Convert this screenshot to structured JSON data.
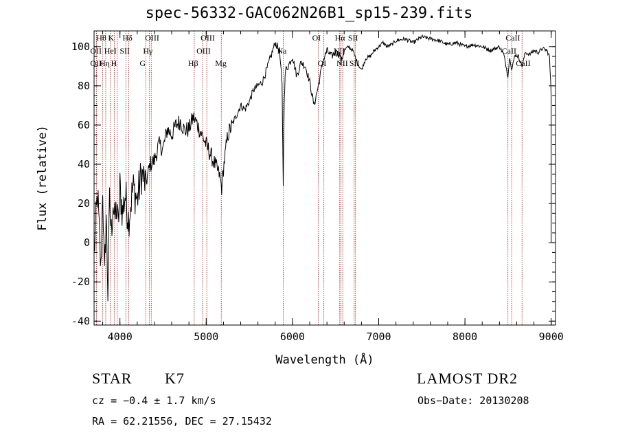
{
  "chart_data": {
    "type": "line",
    "title": "spec-56332-GAC062N26B1_sp15-239.fits",
    "xlabel": "Wavelength (Å)",
    "ylabel": "Flux (relative)",
    "xlim": [
      3700,
      9050
    ],
    "ylim": [
      -42,
      108
    ],
    "xticks": [
      4000,
      5000,
      6000,
      7000,
      8000,
      9000
    ],
    "yticks": [
      -40,
      -20,
      0,
      20,
      40,
      60,
      80,
      100
    ],
    "grid": false,
    "series": [
      {
        "x": [
          3700,
          3720,
          3740,
          3760,
          3780,
          3800,
          3820,
          3840,
          3860,
          3880,
          3900,
          3920,
          3940,
          3960,
          3980,
          4000,
          4030,
          4060,
          4100,
          4150,
          4200,
          4250,
          4300,
          4350,
          4400,
          4450,
          4500,
          4550,
          4600,
          4650,
          4700,
          4750,
          4800,
          4850,
          4900,
          4950,
          5000,
          5050,
          5100,
          5150,
          5180,
          5200,
          5250,
          5300,
          5350,
          5400,
          5450,
          5500,
          5550,
          5600,
          5650,
          5700,
          5750,
          5800,
          5850,
          5880,
          5893,
          5905,
          5920,
          5950,
          6000,
          6050,
          6100,
          6150,
          6200,
          6250,
          6300,
          6350,
          6400,
          6450,
          6500,
          6550,
          6563,
          6600,
          6650,
          6700,
          6750,
          6800,
          6850,
          6900,
          6950,
          7000,
          7050,
          7100,
          7150,
          7200,
          7300,
          7400,
          7500,
          7600,
          7700,
          7800,
          7900,
          8000,
          8100,
          8200,
          8300,
          8400,
          8450,
          8498,
          8520,
          8542,
          8580,
          8620,
          8662,
          8700,
          8750,
          8800,
          8850,
          8900,
          8950,
          8980,
          9000
        ],
        "values": [
          -5,
          10,
          25,
          5,
          -15,
          30,
          -20,
          15,
          -25,
          20,
          5,
          22,
          10,
          18,
          8,
          28,
          15,
          25,
          12,
          28,
          22,
          35,
          30,
          40,
          42,
          50,
          48,
          58,
          55,
          60,
          62,
          57,
          58,
          64,
          60,
          55,
          50,
          45,
          40,
          35,
          28,
          38,
          55,
          60,
          65,
          70,
          68,
          72,
          78,
          80,
          82,
          88,
          95,
          102,
          98,
          80,
          30,
          75,
          88,
          90,
          95,
          85,
          92,
          90,
          82,
          70,
          80,
          92,
          98,
          95,
          97,
          96,
          92,
          98,
          100,
          98,
          92,
          88,
          94,
          95,
          98,
          100,
          102,
          100,
          101,
          103,
          104,
          102,
          105,
          104,
          103,
          101,
          102,
          100,
          101,
          100,
          98,
          100,
          96,
          85,
          95,
          88,
          96,
          95,
          90,
          97,
          96,
          98,
          97,
          99,
          98,
          95,
          75
        ]
      }
    ],
    "lines": [
      {
        "x": 3798,
        "label": "Hθ",
        "row": 0
      },
      {
        "x": 3727,
        "label": "OII",
        "row": 1
      },
      {
        "x": 3727,
        "label": "OII",
        "row": 2
      },
      {
        "x": 3835,
        "label": "Hη",
        "row": 2
      },
      {
        "x": 3889,
        "label": "HeI",
        "row": 1
      },
      {
        "x": 3934,
        "label": "K",
        "row": 0
      },
      {
        "x": 3968,
        "label": "H",
        "row": 2
      },
      {
        "x": 4069,
        "label": "SII",
        "row": 1
      },
      {
        "x": 4102,
        "label": "Hδ",
        "row": 0
      },
      {
        "x": 4300,
        "label": "G",
        "row": 2
      },
      {
        "x": 4340,
        "label": "Hγ",
        "row": 1
      },
      {
        "x": 4363,
        "label": "OIII",
        "row": 0
      },
      {
        "x": 4861,
        "label": "Hβ",
        "row": 2
      },
      {
        "x": 4959,
        "label": "OIII",
        "row": 1
      },
      {
        "x": 5007,
        "label": "OIII",
        "row": 0
      },
      {
        "x": 5175,
        "label": "Mg",
        "row": 2
      },
      {
        "x": 5893,
        "label": "Na",
        "row": 1
      },
      {
        "x": 6300,
        "label": "OI",
        "row": 0
      },
      {
        "x": 6364,
        "label": "OI",
        "row": 2
      },
      {
        "x": 6548,
        "label": "NII",
        "row": 1
      },
      {
        "x": 6563,
        "label": "Hα",
        "row": 0
      },
      {
        "x": 6583,
        "label": "NII",
        "row": 2
      },
      {
        "x": 6716,
        "label": "SII",
        "row": 0
      },
      {
        "x": 6731,
        "label": "SII",
        "row": 2
      },
      {
        "x": 8498,
        "label": "CaII",
        "row": 1
      },
      {
        "x": 8542,
        "label": "CaII",
        "row": 0
      },
      {
        "x": 8662,
        "label": "CaII",
        "row": 2
      }
    ]
  },
  "info": {
    "object_class": "STAR",
    "subclass": "K7",
    "survey": "LAMOST DR2",
    "cz": "cz = −0.4 ± 1.7 km/s",
    "obs_date": "Obs−Date: 20130208",
    "coords": "RA =  62.21556, DEC =  27.15432"
  }
}
